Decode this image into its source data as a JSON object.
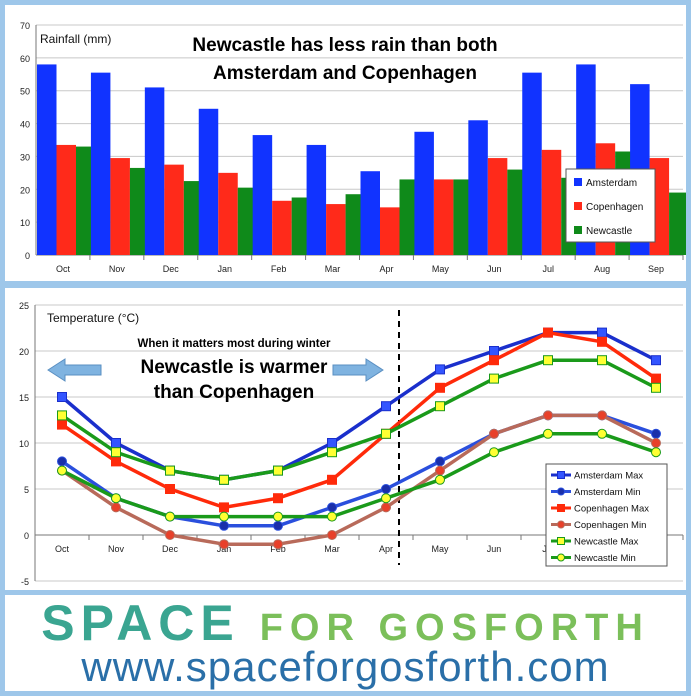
{
  "chart_data": [
    {
      "type": "bar",
      "title": "Newcastle has less rain than both Amsterdam and Copenhagen",
      "title_lines": [
        "Newcastle has less rain than both",
        "Amsterdam and Copenhagen"
      ],
      "ylabel": "Rainfall (mm)",
      "ylim": [
        0,
        70
      ],
      "yticks": [
        0,
        10,
        20,
        30,
        40,
        50,
        60,
        70
      ],
      "grid": true,
      "legend_position": "right",
      "categories": [
        "Oct",
        "Nov",
        "Dec",
        "Jan",
        "Feb",
        "Mar",
        "Apr",
        "May",
        "Jun",
        "Jul",
        "Aug",
        "Sep"
      ],
      "series": [
        {
          "name": "Amsterdam",
          "color": "#1133ff",
          "values": [
            58,
            55.5,
            51,
            44.5,
            36.5,
            33.5,
            25.5,
            37.5,
            41,
            55.5,
            58,
            52
          ]
        },
        {
          "name": "Copenhagen",
          "color": "#ff2a1a",
          "values": [
            33.5,
            29.5,
            27.5,
            25,
            16.5,
            15.5,
            14.5,
            23,
            29.5,
            32,
            34,
            29.5
          ]
        },
        {
          "name": "Newcastle",
          "color": "#0f8a1a",
          "values": [
            33,
            26.5,
            22.5,
            20.5,
            17.5,
            18.5,
            23,
            23,
            26,
            23.5,
            31.5,
            19
          ]
        }
      ]
    },
    {
      "type": "line",
      "ylabel": "Temperature (°C)",
      "annotation_small": "When it matters most during winter",
      "annotation_big_lines": [
        "Newcastle is warmer",
        "than Copenhagen"
      ],
      "ylim": [
        -5,
        25
      ],
      "yticks": [
        -5,
        0,
        5,
        10,
        15,
        20,
        25
      ],
      "grid": true,
      "legend_position": "bottom-right",
      "divider_after": "Apr",
      "categories": [
        "Oct",
        "Nov",
        "Dec",
        "Jan",
        "Feb",
        "Mar",
        "Apr",
        "May",
        "Jun",
        "Jul",
        "Aug",
        "Sep"
      ],
      "series": [
        {
          "name": "Amsterdam Max",
          "color": "#1a2fcc",
          "marker": "square",
          "marker_color": "#3355ff",
          "values": [
            15,
            10,
            7,
            6,
            7,
            10,
            14,
            18,
            20,
            22,
            22,
            19
          ]
        },
        {
          "name": "Amsterdam Min",
          "color": "#2a4fdd",
          "marker": "circle",
          "marker_color": "#1a2faa",
          "values": [
            8,
            4,
            2,
            1,
            1,
            3,
            5,
            8,
            11,
            13,
            13,
            11
          ]
        },
        {
          "name": "Copenhagen Max",
          "color": "#ff2a0a",
          "marker": "square",
          "marker_color": "#ff2a0a",
          "values": [
            12,
            8,
            5,
            3,
            4,
            6,
            11,
            16,
            19,
            22,
            21,
            17
          ]
        },
        {
          "name": "Copenhagen Min",
          "color": "#b86a5a",
          "marker": "circle",
          "marker_color": "#e8402a",
          "values": [
            7,
            3,
            0,
            -1,
            -1,
            0,
            3,
            7,
            11,
            13,
            13,
            10
          ]
        },
        {
          "name": "Newcastle Max",
          "color": "#1a9a1a",
          "marker": "square",
          "marker_color": "#ffff33",
          "values": [
            13,
            9,
            7,
            6,
            7,
            9,
            11,
            14,
            17,
            19,
            19,
            16
          ]
        },
        {
          "name": "Newcastle Min",
          "color": "#1a9a1a",
          "marker": "circle",
          "marker_color": "#ffff33",
          "values": [
            7,
            4,
            2,
            2,
            2,
            2,
            4,
            6,
            9,
            11,
            11,
            9
          ]
        }
      ]
    }
  ],
  "brand": {
    "line1_big_s": "S",
    "line1_rest": "PACE",
    "line1_tail": "FOR GOSFORTH",
    "url": "www.spaceforgosforth.com",
    "colors": {
      "teal": "#3fab98",
      "green": "#7bbf5a",
      "blue": "#2a6fa8"
    }
  }
}
